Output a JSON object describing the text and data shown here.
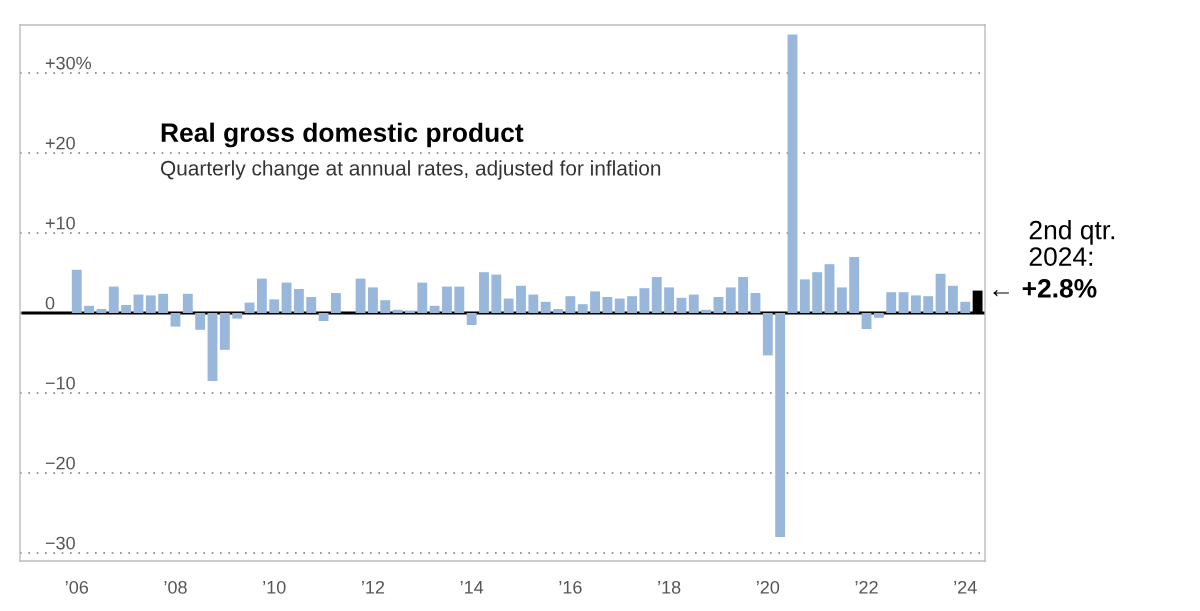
{
  "chart_data": {
    "type": "bar",
    "title": "Real gross domestic product",
    "subtitle": "Quarterly change at annual rates, adjusted for inflation",
    "categories": [
      "’06",
      null,
      null,
      null,
      null,
      null,
      null,
      null,
      "’08",
      null,
      null,
      null,
      null,
      null,
      null,
      null,
      "’10",
      null,
      null,
      null,
      null,
      null,
      null,
      null,
      "’12",
      null,
      null,
      null,
      null,
      null,
      null,
      null,
      "’14",
      null,
      null,
      null,
      null,
      null,
      null,
      null,
      "’16",
      null,
      null,
      null,
      null,
      null,
      null,
      null,
      "’18",
      null,
      null,
      null,
      null,
      null,
      null,
      null,
      "’20",
      null,
      null,
      null,
      null,
      null,
      null,
      null,
      "’22",
      null,
      null,
      null,
      null,
      null,
      null,
      null,
      "’24",
      null
    ],
    "values": [
      5.4,
      0.9,
      0.5,
      3.3,
      1.0,
      2.3,
      2.2,
      2.4,
      -1.7,
      2.4,
      -2.1,
      -8.5,
      -4.6,
      -0.7,
      1.3,
      4.3,
      1.7,
      3.8,
      3.0,
      2.0,
      -1.0,
      2.5,
      null,
      4.3,
      3.2,
      1.6,
      0.4,
      0.3,
      3.8,
      0.9,
      3.3,
      3.3,
      -1.5,
      5.1,
      4.8,
      1.8,
      3.4,
      2.3,
      1.4,
      0.5,
      2.1,
      1.1,
      2.7,
      2.0,
      1.8,
      2.1,
      3.1,
      4.5,
      3.2,
      1.9,
      2.3,
      0.4,
      2.0,
      3.2,
      4.5,
      2.5,
      -5.3,
      -28.0,
      34.8,
      4.2,
      5.1,
      6.1,
      3.2,
      7.0,
      -2.0,
      -0.6,
      2.6,
      2.6,
      2.2,
      2.1,
      4.9,
      3.4,
      1.4,
      2.8
    ],
    "colors": [
      "#99b7db",
      "#99b7db",
      "#99b7db",
      "#99b7db",
      "#99b7db",
      "#99b7db",
      "#99b7db",
      "#99b7db",
      "#99b7db",
      "#99b7db",
      "#99b7db",
      "#99b7db",
      "#99b7db",
      "#99b7db",
      "#99b7db",
      "#99b7db",
      "#99b7db",
      "#99b7db",
      "#99b7db",
      "#99b7db",
      "#99b7db",
      "#99b7db",
      "#99b7db",
      "#99b7db",
      "#99b7db",
      "#99b7db",
      "#99b7db",
      "#99b7db",
      "#99b7db",
      "#99b7db",
      "#99b7db",
      "#99b7db",
      "#99b7db",
      "#99b7db",
      "#99b7db",
      "#99b7db",
      "#99b7db",
      "#99b7db",
      "#99b7db",
      "#99b7db",
      "#99b7db",
      "#99b7db",
      "#99b7db",
      "#99b7db",
      "#99b7db",
      "#99b7db",
      "#99b7db",
      "#99b7db",
      "#99b7db",
      "#99b7db",
      "#99b7db",
      "#99b7db",
      "#99b7db",
      "#99b7db",
      "#99b7db",
      "#99b7db",
      "#99b7db",
      "#99b7db",
      "#99b7db",
      "#99b7db",
      "#99b7db",
      "#99b7db",
      "#99b7db",
      "#99b7db",
      "#99b7db",
      "#99b7db",
      "#99b7db",
      "#99b7db",
      "#99b7db",
      "#99b7db",
      "#99b7db",
      "#99b7db",
      "#99b7db",
      "#000000"
    ],
    "ylim": [
      -31,
      36
    ],
    "yticks": [
      {
        "value": -30,
        "label": "−30"
      },
      {
        "value": -20,
        "label": "−20"
      },
      {
        "value": -10,
        "label": "−10"
      },
      0,
      {
        "value": 10,
        "label": "+10"
      },
      {
        "value": 20,
        "label": "+20"
      },
      {
        "value": 30,
        "label": "+30%"
      }
    ],
    "grid": "y",
    "ref_lines": [
      {
        "axis": "y",
        "value": 0,
        "color": "#000000"
      }
    ],
    "annotations": [
      "2nd qtr.\n2024:",
      "← +2.8%"
    ]
  }
}
